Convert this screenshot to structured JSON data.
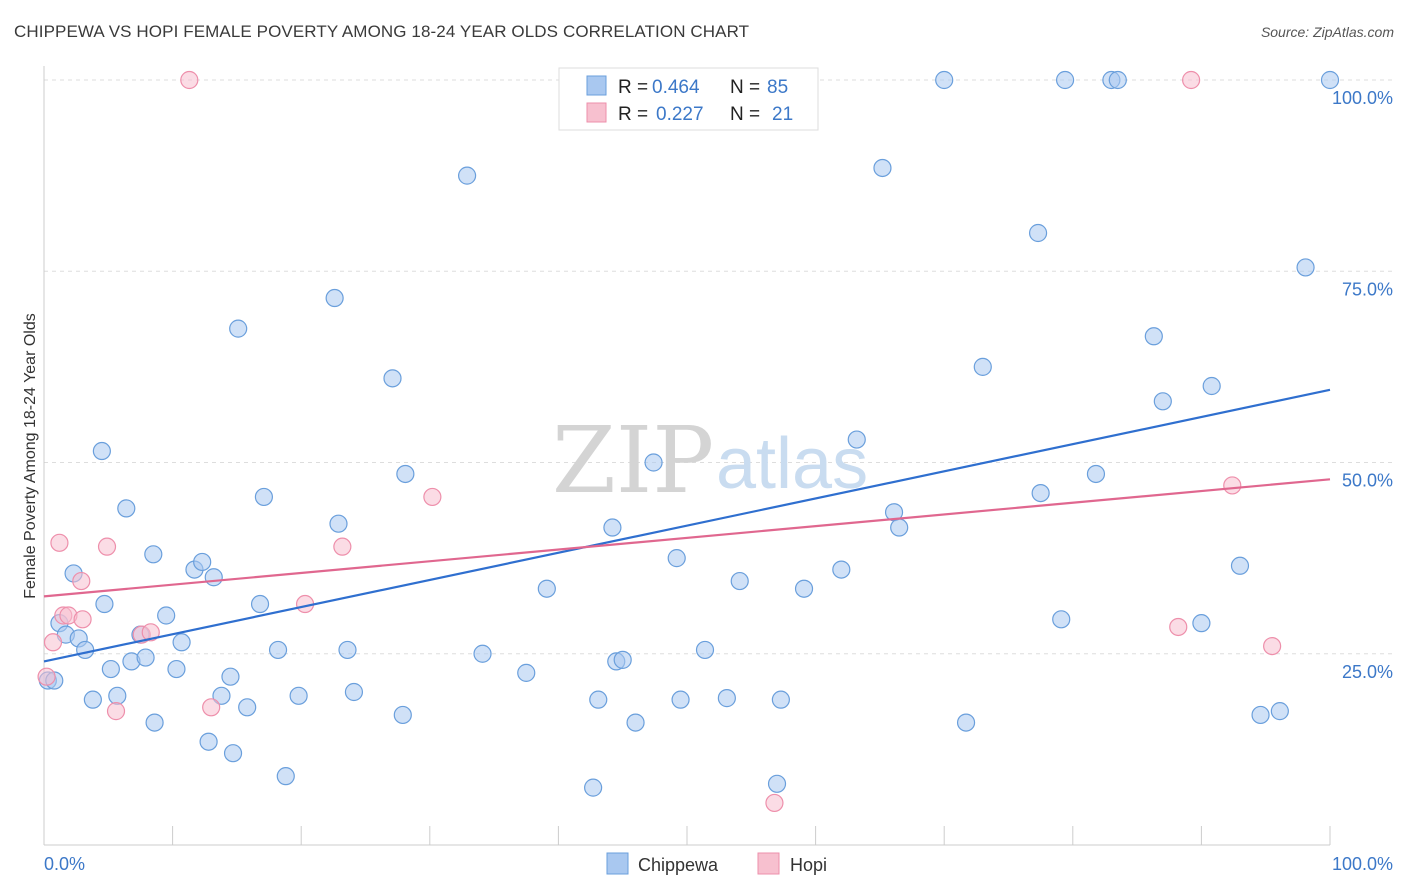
{
  "title": "CHIPPEWA VS HOPI FEMALE POVERTY AMONG 18-24 YEAR OLDS CORRELATION CHART",
  "source": "Source: ZipAtlas.com",
  "watermark": {
    "zip": "ZIP",
    "atlas": "atlas"
  },
  "legend": {
    "chippewa": {
      "r_label": "R =",
      "r_value": "0.464",
      "n_label": "N =",
      "n_value": "85"
    },
    "hopi": {
      "r_label": "R =",
      "r_value": "0.227",
      "n_label": "N =",
      "n_value": "21"
    }
  },
  "colors": {
    "chippewa_fill": "#a9c8f0",
    "chippewa_stroke": "#6a9fdc",
    "chippewa_line": "#2f6fcf",
    "hopi_fill": "#f7c0cf",
    "hopi_stroke": "#ee8fab",
    "hopi_line": "#e0678f",
    "tick_text": "#3c78c8",
    "grid": "#dddddd"
  },
  "chart_data": {
    "type": "scatter",
    "title": "CHIPPEWA VS HOPI FEMALE POVERTY AMONG 18-24 YEAR OLDS CORRELATION CHART",
    "xlabel": "",
    "ylabel": "Female Poverty Among 18-24 Year Olds",
    "xlim": [
      0,
      100
    ],
    "ylim": [
      0,
      100
    ],
    "x_tick_labels": [
      "0.0%",
      "100.0%"
    ],
    "y_tick_labels": [
      "25.0%",
      "50.0%",
      "75.0%",
      "100.0%"
    ],
    "y_ticks": [
      25,
      50,
      75,
      100
    ],
    "legend_position": "top-center",
    "series": [
      {
        "name": "Chippewa",
        "points": [
          [
            0.3,
            21.5
          ],
          [
            0.8,
            21.5
          ],
          [
            1.2,
            29
          ],
          [
            1.7,
            27.5
          ],
          [
            2.3,
            35.5
          ],
          [
            2.7,
            27
          ],
          [
            3.2,
            25.5
          ],
          [
            3.8,
            19
          ],
          [
            4.5,
            51.5
          ],
          [
            4.7,
            31.5
          ],
          [
            5.2,
            23
          ],
          [
            5.7,
            19.5
          ],
          [
            6.4,
            44
          ],
          [
            6.8,
            24
          ],
          [
            7.5,
            27.5
          ],
          [
            7.9,
            24.5
          ],
          [
            8.5,
            38
          ],
          [
            8.6,
            16
          ],
          [
            9.5,
            30
          ],
          [
            10.3,
            23
          ],
          [
            10.7,
            26.5
          ],
          [
            11.7,
            36
          ],
          [
            12.3,
            37
          ],
          [
            12.8,
            13.5
          ],
          [
            13.2,
            35
          ],
          [
            13.8,
            19.5
          ],
          [
            14.5,
            22
          ],
          [
            14.7,
            12
          ],
          [
            15.1,
            67.5
          ],
          [
            15.8,
            18
          ],
          [
            16.8,
            31.5
          ],
          [
            17.1,
            45.5
          ],
          [
            18.2,
            25.5
          ],
          [
            18.8,
            9
          ],
          [
            19.8,
            19.5
          ],
          [
            22.6,
            71.5
          ],
          [
            22.9,
            42
          ],
          [
            23.6,
            25.5
          ],
          [
            24.1,
            20
          ],
          [
            27.1,
            61
          ],
          [
            27.9,
            17
          ],
          [
            28.1,
            48.5
          ],
          [
            32.9,
            87.5
          ],
          [
            34.1,
            25
          ],
          [
            37.5,
            22.5
          ],
          [
            39.1,
            33.5
          ],
          [
            42.7,
            7.5
          ],
          [
            43.1,
            19
          ],
          [
            44.2,
            41.5
          ],
          [
            44.5,
            24
          ],
          [
            45.0,
            24.2
          ],
          [
            46.0,
            16
          ],
          [
            47.4,
            50
          ],
          [
            49.2,
            37.5
          ],
          [
            49.5,
            19
          ],
          [
            51.4,
            25.5
          ],
          [
            53.1,
            19.2
          ],
          [
            54.1,
            34.5
          ],
          [
            57.0,
            8
          ],
          [
            57.3,
            19
          ],
          [
            59.1,
            33.5
          ],
          [
            62.0,
            36
          ],
          [
            63.2,
            53
          ],
          [
            65.2,
            88.5
          ],
          [
            66.1,
            43.5
          ],
          [
            66.5,
            41.5
          ],
          [
            70.0,
            100
          ],
          [
            71.7,
            16
          ],
          [
            73.0,
            62.5
          ],
          [
            77.3,
            80
          ],
          [
            77.5,
            46
          ],
          [
            79.1,
            29.5
          ],
          [
            79.4,
            100
          ],
          [
            81.8,
            48.5
          ],
          [
            83.0,
            100
          ],
          [
            83.5,
            100
          ],
          [
            86.3,
            66.5
          ],
          [
            87.0,
            58
          ],
          [
            90.0,
            29
          ],
          [
            90.8,
            60
          ],
          [
            93.0,
            36.5
          ],
          [
            94.6,
            17
          ],
          [
            96.1,
            17.5
          ],
          [
            98.1,
            75.5
          ],
          [
            100.0,
            100
          ]
        ]
      },
      {
        "name": "Hopi",
        "points": [
          [
            0.2,
            22
          ],
          [
            0.7,
            26.5
          ],
          [
            1.2,
            39.5
          ],
          [
            1.5,
            30
          ],
          [
            1.9,
            30
          ],
          [
            2.9,
            34.5
          ],
          [
            3.0,
            29.5
          ],
          [
            4.9,
            39
          ],
          [
            5.6,
            17.5
          ],
          [
            7.6,
            27.5
          ],
          [
            8.3,
            27.8
          ],
          [
            11.3,
            100
          ],
          [
            13.0,
            18
          ],
          [
            20.3,
            31.5
          ],
          [
            23.2,
            39
          ],
          [
            30.2,
            45.5
          ],
          [
            56.8,
            5.5
          ],
          [
            88.2,
            28.5
          ],
          [
            89.2,
            100
          ],
          [
            92.4,
            47
          ],
          [
            95.5,
            26
          ]
        ]
      }
    ],
    "trend_lines": [
      {
        "name": "Chippewa",
        "x": [
          0,
          100
        ],
        "y": [
          24.0,
          59.5
        ]
      },
      {
        "name": "Hopi",
        "x": [
          0,
          100
        ],
        "y": [
          32.5,
          47.8
        ]
      }
    ]
  }
}
